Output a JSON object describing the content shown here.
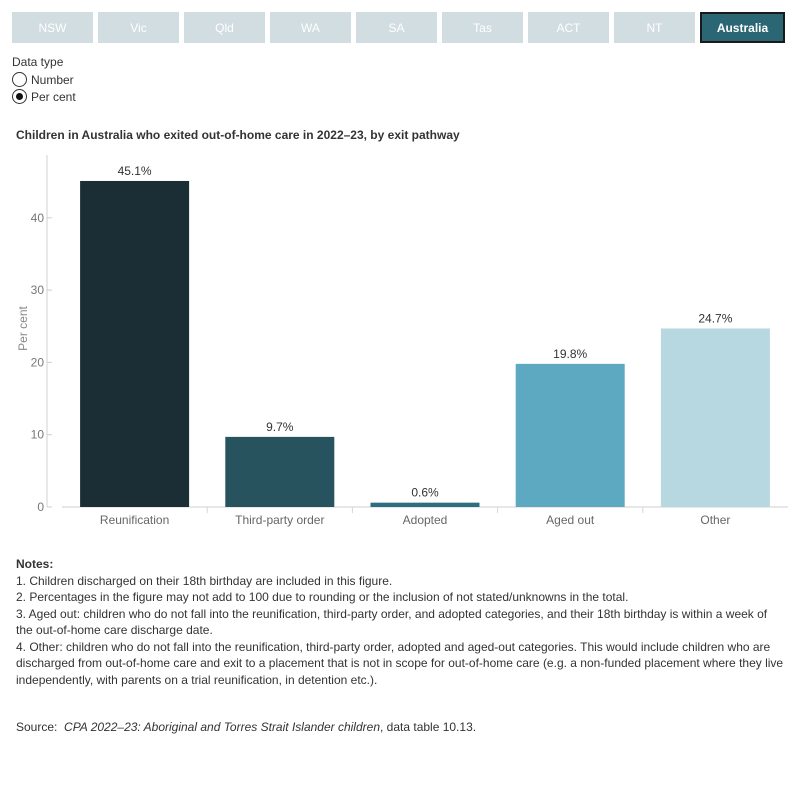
{
  "tabs": [
    "NSW",
    "Vic",
    "Qld",
    "WA",
    "SA",
    "Tas",
    "ACT",
    "NT",
    "Australia"
  ],
  "active_tab": "Australia",
  "data_type": {
    "title": "Data type",
    "options": [
      "Number",
      "Per cent"
    ],
    "selected": "Per cent"
  },
  "colors": {
    "tab_inactive": "#d1dde1",
    "tab_active": "#2b6675",
    "bars": [
      "#1b2e36",
      "#27535f",
      "#2f6e80",
      "#5ea9c2",
      "#b8d8e1"
    ]
  },
  "chart_data": {
    "type": "bar",
    "title": "Children in Australia who exited out-of-home care in 2022–23, by exit pathway",
    "categories": [
      "Reunification",
      "Third-party order",
      "Adopted",
      "Aged out",
      "Other"
    ],
    "values": [
      45.1,
      9.7,
      0.6,
      19.8,
      24.7
    ],
    "data_labels": [
      "45.1%",
      "9.7%",
      "0.6%",
      "19.8%",
      "24.7%"
    ],
    "xlabel": "",
    "ylabel": "Per cent",
    "ylim": [
      0,
      48
    ],
    "yticks": [
      0,
      10,
      20,
      30,
      40
    ],
    "grid": false,
    "legend": "none"
  },
  "notes": {
    "heading": "Notes:",
    "items": [
      "1. Children discharged on their 18th birthday are included in this figure.",
      "2. Percentages in the figure may not add to 100 due to rounding or the inclusion of not stated/unknowns in the total.",
      "3. Aged out: children who do not fall into the reunification, third-party order, and adopted categories, and their 18th birthday is within a week of the out-of-home care discharge date.",
      "4. Other: children who do not fall into the reunification, third-party order, adopted and aged-out categories. This would include children who are discharged from out-of-home care and exit to a placement that is not in scope for out-of-home care (e.g. a non-funded placement where they live independently, with parents on a trial reunification, in detention etc.)."
    ]
  },
  "source": {
    "prefix": "Source:",
    "publication": "CPA 2022–23: Aboriginal and Torres Strait Islander children",
    "suffix": ", data table 10.13."
  }
}
